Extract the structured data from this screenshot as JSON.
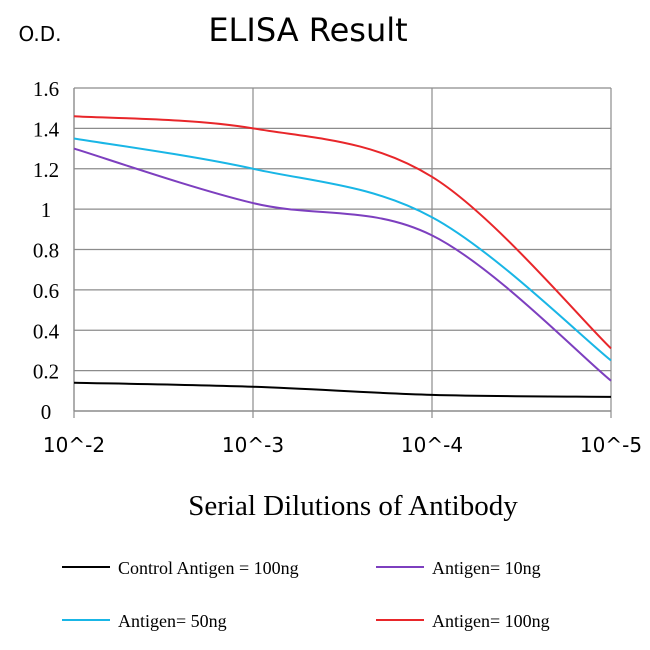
{
  "chart_data": {
    "type": "line",
    "title": "ELISA Result",
    "ylabel": "O.D.",
    "xlabel": "Serial Dilutions of Antibody",
    "categories": [
      "10^-2",
      "10^-3",
      "10^-4",
      "10^-5"
    ],
    "x": [
      0.01,
      0.001,
      0.0001,
      1e-05
    ],
    "y_ticks": [
      "0",
      "0.2",
      "0.4",
      "0.6",
      "0.8",
      "1",
      "1.2",
      "1.4",
      "1.6"
    ],
    "ylim": [
      0,
      1.6
    ],
    "grid": true,
    "legend_position": "bottom",
    "series": [
      {
        "name": "Control Antigen = 100ng",
        "color": "#000000",
        "values": [
          0.14,
          0.12,
          0.08,
          0.07
        ]
      },
      {
        "name": "Antigen= 10ng",
        "color": "#7d3fbf",
        "values": [
          1.3,
          1.03,
          0.87,
          0.15
        ]
      },
      {
        "name": "Antigen= 50ng",
        "color": "#19b6e6",
        "values": [
          1.35,
          1.2,
          0.96,
          0.25
        ]
      },
      {
        "name": "Antigen= 100ng",
        "color": "#e8262a",
        "values": [
          1.46,
          1.4,
          1.16,
          0.31
        ]
      }
    ]
  }
}
